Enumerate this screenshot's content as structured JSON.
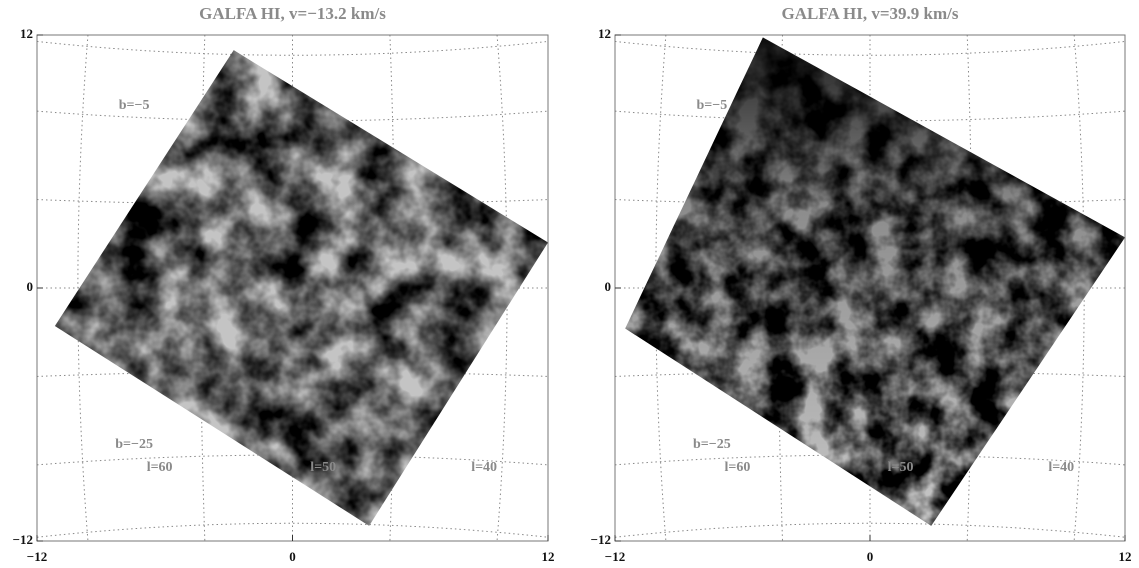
{
  "chart_data": [
    {
      "type": "map",
      "title": "GALFA HI, v=−13.2 km/s",
      "xlim": [
        -12,
        12
      ],
      "ylim": [
        -12,
        12
      ],
      "xticks": [
        {
          "value": -12,
          "label": "−12"
        },
        0,
        12
      ],
      "yticks": [
        {
          "value": -12,
          "label": "−12"
        },
        0,
        12
      ],
      "annotations": [
        "b=−5",
        "b=−25",
        "l=60",
        "l=50",
        "l=40"
      ]
    },
    {
      "type": "map",
      "title": "GALFA HI, v=39.9 km/s",
      "xlim": [
        -12,
        12
      ],
      "ylim": [
        -12,
        12
      ],
      "xticks": [
        {
          "value": -12,
          "label": "−12"
        },
        0,
        12
      ],
      "yticks": [
        {
          "value": -12,
          "label": "−12"
        },
        0,
        12
      ],
      "annotations": [
        "b=−5",
        "b=−25",
        "l=60",
        "l=50",
        "l=40"
      ]
    }
  ]
}
